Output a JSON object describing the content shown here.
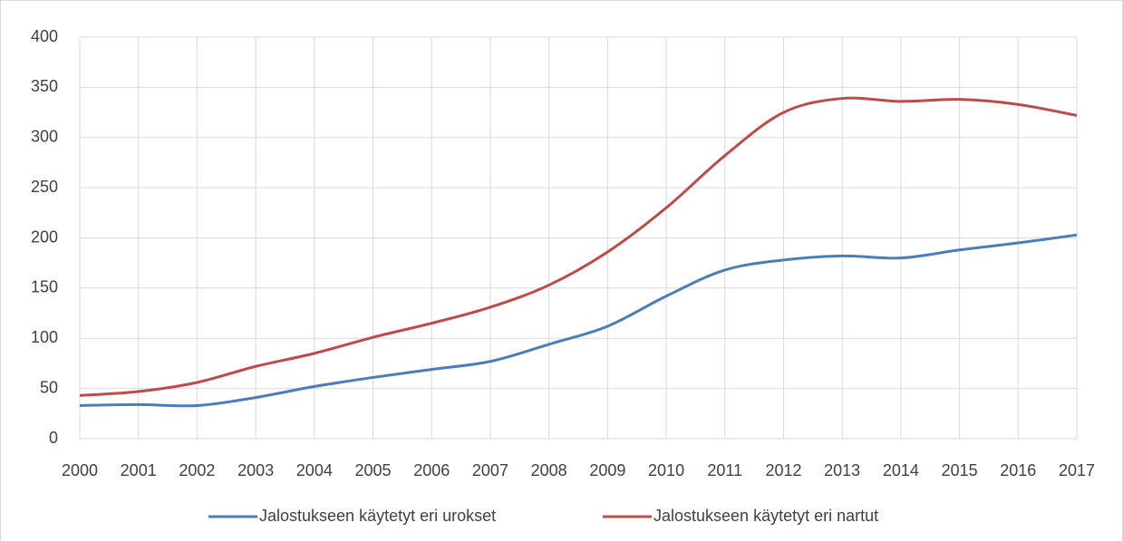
{
  "chart_data": {
    "type": "line",
    "x": [
      2000,
      2001,
      2002,
      2003,
      2004,
      2005,
      2006,
      2007,
      2008,
      2009,
      2010,
      2011,
      2012,
      2013,
      2014,
      2015,
      2016,
      2017
    ],
    "xlim": [
      2000,
      2017
    ],
    "xticks": [
      2000,
      2001,
      2002,
      2003,
      2004,
      2005,
      2006,
      2007,
      2008,
      2009,
      2010,
      2011,
      2012,
      2013,
      2014,
      2015,
      2016,
      2017
    ],
    "ylim": [
      0,
      400
    ],
    "yticks": [
      0,
      50,
      100,
      150,
      200,
      250,
      300,
      350,
      400
    ],
    "grid": true,
    "legend": "bottom",
    "series": [
      {
        "name": "Jalostukseen käytetyt eri urokset",
        "color": "#4a7ebb",
        "values": [
          33,
          34,
          33,
          41,
          52,
          61,
          69,
          77,
          94,
          112,
          142,
          168,
          178,
          182,
          180,
          188,
          195,
          203
        ]
      },
      {
        "name": "Jalostukseen käytetyt eri nartut",
        "color": "#be4b48",
        "values": [
          43,
          47,
          56,
          72,
          85,
          101,
          115,
          131,
          153,
          186,
          230,
          282,
          325,
          339,
          336,
          338,
          333,
          322
        ]
      }
    ]
  }
}
